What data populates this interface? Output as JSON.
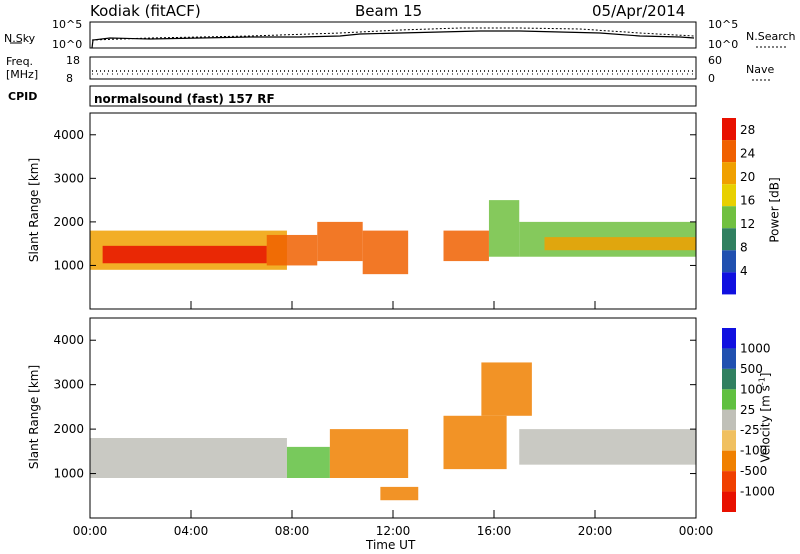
{
  "header": {
    "station": "Kodiak (fitACF)",
    "beam": "Beam 15",
    "date": "05/Apr/2014"
  },
  "sky_panel": {
    "left_label": "N.Sky",
    "right_label": "N.Search",
    "left_ticks": [
      "10^5",
      "10^0"
    ],
    "right_ticks": [
      "10^5",
      "10^0"
    ]
  },
  "freq_panel": {
    "left_label_1": "Freq.",
    "left_label_2": "[MHz]",
    "right_label": "Nave",
    "left_ticks": [
      "18",
      "8"
    ],
    "right_ticks": [
      "60",
      "0"
    ]
  },
  "cpid_panel": {
    "label": "CPID",
    "text": "normalsound (fast) 157 RF"
  },
  "colors": {
    "power_scale": [
      "#1010e0",
      "#2050b0",
      "#308060",
      "#70c040",
      "#e8d000",
      "#f0a000",
      "#f06000",
      "#e81000"
    ],
    "velocity_scale": [
      "#e81000",
      "#f04000",
      "#f08000",
      "#f0c060",
      "#c0c0b8",
      "#60c040",
      "#308060",
      "#2050b0",
      "#1010e0"
    ]
  },
  "chart_data": [
    {
      "type": "heatmap",
      "title": "",
      "ylabel": "Slant Range [km]",
      "xlabel": "",
      "ylim": [
        0,
        4500
      ],
      "xlim": [
        "00:00",
        "24:00"
      ],
      "y_ticks": [
        "1000",
        "2000",
        "3000",
        "4000"
      ],
      "x_ticks": [],
      "colorbar": {
        "label": "Power [dB]",
        "ticks": [
          "4",
          "8",
          "12",
          "16",
          "20",
          "24",
          "28"
        ],
        "range": [
          0,
          30
        ]
      },
      "regions": [
        {
          "t0": 0.0,
          "t1": 7.8,
          "r0": 900,
          "r1": 1800,
          "level": 22
        },
        {
          "t0": 0.5,
          "t1": 7.0,
          "r0": 1050,
          "r1": 1450,
          "level": 28
        },
        {
          "t0": 7.0,
          "t1": 9.0,
          "r0": 1000,
          "r1": 1700,
          "level": 26
        },
        {
          "t0": 9.0,
          "t1": 10.8,
          "r0": 1100,
          "r1": 2000,
          "level": 24
        },
        {
          "t0": 10.8,
          "t1": 12.6,
          "r0": 800,
          "r1": 1800,
          "level": 26
        },
        {
          "t0": 14.0,
          "t1": 15.8,
          "r0": 1100,
          "r1": 1800,
          "level": 24
        },
        {
          "t0": 15.8,
          "t1": 17.0,
          "r0": 1200,
          "r1": 2500,
          "level": 12
        },
        {
          "t0": 17.0,
          "t1": 24.0,
          "r0": 1200,
          "r1": 2000,
          "level": 14
        },
        {
          "t0": 18.0,
          "t1": 24.0,
          "r0": 1350,
          "r1": 1650,
          "level": 22
        }
      ]
    },
    {
      "type": "heatmap",
      "title": "",
      "ylabel": "Slant Range [km]",
      "xlabel": "Time UT",
      "ylim": [
        0,
        4500
      ],
      "xlim": [
        "00:00",
        "24:00"
      ],
      "y_ticks": [
        "1000",
        "2000",
        "3000",
        "4000"
      ],
      "x_ticks": [
        "00:00",
        "04:00",
        "08:00",
        "12:00",
        "16:00",
        "20:00",
        "00:00"
      ],
      "colorbar": {
        "label": "Velocity [m s-1]",
        "label_main": "Velocity [m s",
        "label_sup": "-1",
        "label_end": "]",
        "ticks": [
          "1000",
          "500",
          "100",
          "25",
          "-25",
          "-100",
          "-500",
          "-1000"
        ],
        "range": [
          -1200,
          1200
        ]
      },
      "regions": [
        {
          "t0": 0.0,
          "t1": 7.8,
          "r0": 900,
          "r1": 1800,
          "velocity": 0
        },
        {
          "t0": 7.8,
          "t1": 9.5,
          "r0": 900,
          "r1": 1600,
          "velocity": 250
        },
        {
          "t0": 9.5,
          "t1": 12.6,
          "r0": 900,
          "r1": 2000,
          "velocity": -200
        },
        {
          "t0": 11.5,
          "t1": 13.0,
          "r0": 400,
          "r1": 700,
          "velocity": -200
        },
        {
          "t0": 14.0,
          "t1": 16.5,
          "r0": 1100,
          "r1": 2300,
          "velocity": -200
        },
        {
          "t0": 15.5,
          "t1": 17.5,
          "r0": 2300,
          "r1": 3500,
          "velocity": -150
        },
        {
          "t0": 17.0,
          "t1": 24.0,
          "r0": 1200,
          "r1": 2000,
          "velocity": 0
        }
      ]
    }
  ]
}
